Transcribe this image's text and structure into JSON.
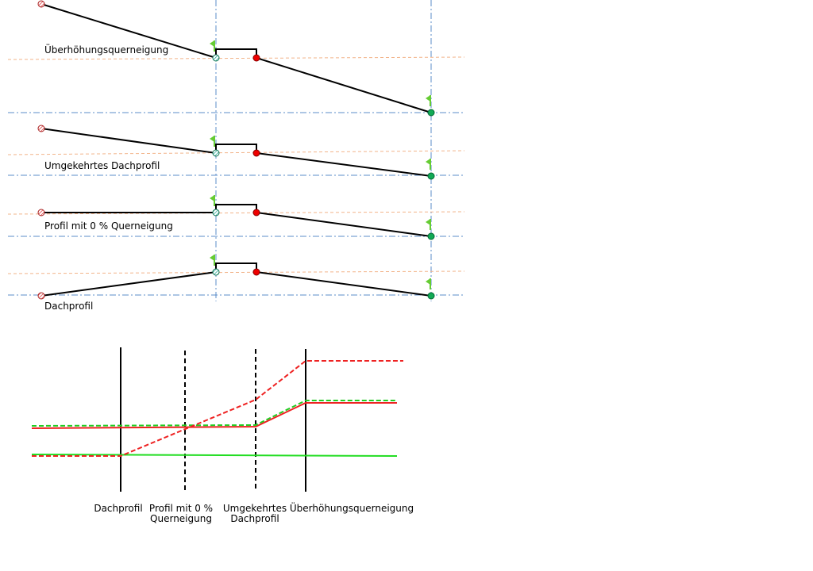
{
  "profiles": [
    {
      "label": "Überhöhungsquerneigung"
    },
    {
      "label": "Umgekehrtes Dachprofil"
    },
    {
      "label": "Profil mit 0 % Querneigung"
    },
    {
      "label": "Dachprofil"
    }
  ],
  "transition": {
    "labels": [
      [
        "Dachprofil"
      ],
      [
        "Profil mit 0 %",
        "Querneigung"
      ],
      [
        "Umgekehrtes",
        "Dachprofil"
      ],
      [
        "Überhöhungsquerneigung"
      ]
    ]
  }
}
